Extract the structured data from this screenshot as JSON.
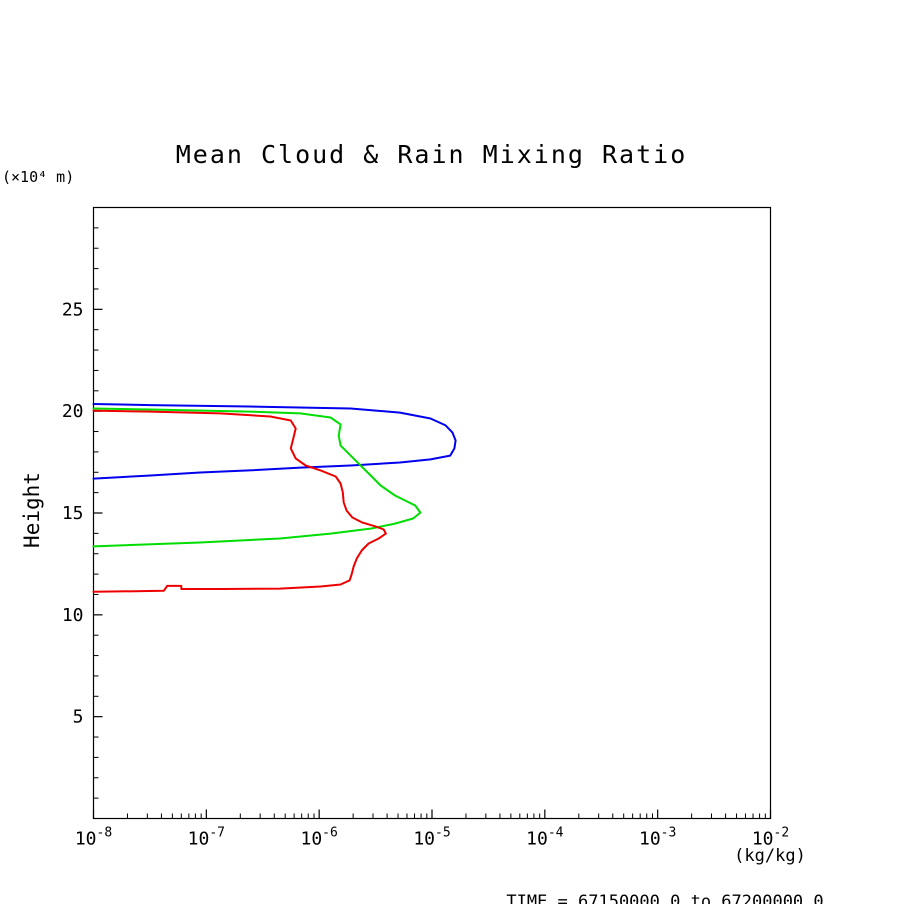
{
  "chart_data": {
    "type": "line",
    "title": "Mean Cloud & Rain Mixing Ratio",
    "xlabel": "(kg/kg)",
    "ylabel": "Height",
    "y_unit_label": "(×10⁴ m)",
    "footer": "TIME = 67150000.0 to 67200000.0",
    "x_scale": "log",
    "x_tick_exponents": [
      -8,
      -7,
      -6,
      -5,
      -4,
      -3,
      -2
    ],
    "ylim": [
      0,
      30
    ],
    "y_major_ticks": [
      5,
      10,
      15,
      20,
      25
    ],
    "grid": false,
    "legend": "none",
    "axis_color": "#000000",
    "series": [
      {
        "name": "series-blue",
        "color": "#0000ee",
        "points": [
          [
            1e-08,
            20.35
          ],
          [
            3.2e-08,
            20.3
          ],
          [
            2.4e-07,
            20.23
          ],
          [
            1.9e-06,
            20.13
          ],
          [
            5.2e-06,
            19.93
          ],
          [
            9.7e-06,
            19.64
          ],
          [
            1.32e-05,
            19.3
          ],
          [
            1.52e-05,
            18.95
          ],
          [
            1.62e-05,
            18.56
          ],
          [
            1.58e-05,
            18.17
          ],
          [
            1.45e-05,
            17.82
          ],
          [
            9.7e-06,
            17.63
          ],
          [
            5.2e-06,
            17.48
          ],
          [
            1.9e-06,
            17.33
          ],
          [
            6.8e-07,
            17.23
          ],
          [
            2.4e-07,
            17.09
          ],
          [
            8.8e-08,
            16.99
          ],
          [
            3.2e-08,
            16.84
          ],
          [
            1e-08,
            16.69
          ]
        ]
      },
      {
        "name": "series-green",
        "color": "#00dd00",
        "points": [
          [
            1e-08,
            20.13
          ],
          [
            3.2e-08,
            20.08
          ],
          [
            2.4e-07,
            19.98
          ],
          [
            6.8e-07,
            19.89
          ],
          [
            1.26e-06,
            19.69
          ],
          [
            1.55e-06,
            19.35
          ],
          [
            1.49e-06,
            18.8
          ],
          [
            1.55e-06,
            18.31
          ],
          [
            1.9e-06,
            17.82
          ],
          [
            2.33e-06,
            17.33
          ],
          [
            2.86e-06,
            16.84
          ],
          [
            3.5e-06,
            16.35
          ],
          [
            4.7e-06,
            15.86
          ],
          [
            7.1e-06,
            15.37
          ],
          [
            7.9e-06,
            15.02
          ],
          [
            6.8e-06,
            14.73
          ],
          [
            4.7e-06,
            14.48
          ],
          [
            2.9e-06,
            14.24
          ],
          [
            1.26e-06,
            13.99
          ],
          [
            4.5e-07,
            13.75
          ],
          [
            8.8e-08,
            13.55
          ],
          [
            1e-08,
            13.36
          ]
        ]
      },
      {
        "name": "series-red",
        "color": "#ee0000",
        "points": [
          [
            1e-08,
            20.03
          ],
          [
            3.2e-08,
            19.98
          ],
          [
            1.33e-07,
            19.89
          ],
          [
            3.7e-07,
            19.74
          ],
          [
            5.6e-07,
            19.54
          ],
          [
            6.2e-07,
            19.15
          ],
          [
            5.9e-07,
            18.66
          ],
          [
            5.6e-07,
            18.17
          ],
          [
            6.2e-07,
            17.68
          ],
          [
            7.6e-07,
            17.33
          ],
          [
            1.03e-06,
            17.09
          ],
          [
            1.4e-06,
            16.79
          ],
          [
            1.55e-06,
            16.45
          ],
          [
            1.62e-06,
            16.01
          ],
          [
            1.65e-06,
            15.52
          ],
          [
            1.75e-06,
            15.12
          ],
          [
            1.97e-06,
            14.78
          ],
          [
            2.42e-06,
            14.53
          ],
          [
            3.16e-06,
            14.34
          ],
          [
            3.73e-06,
            14.19
          ],
          [
            3.9e-06,
            13.99
          ],
          [
            3.37e-06,
            13.75
          ],
          [
            2.74e-06,
            13.5
          ],
          [
            2.38e-06,
            13.16
          ],
          [
            2.15e-06,
            12.76
          ],
          [
            2.02e-06,
            12.37
          ],
          [
            1.94e-06,
            11.98
          ],
          [
            1.86e-06,
            11.69
          ],
          [
            1.55e-06,
            11.49
          ],
          [
            1.03e-06,
            11.39
          ],
          [
            4.5e-07,
            11.29
          ],
          [
            1.4e-07,
            11.27
          ],
          [
            6e-08,
            11.27
          ],
          [
            6e-08,
            11.42
          ],
          [
            4.5e-08,
            11.42
          ],
          [
            4.2e-08,
            11.18
          ],
          [
            1e-08,
            11.13
          ]
        ]
      }
    ]
  }
}
